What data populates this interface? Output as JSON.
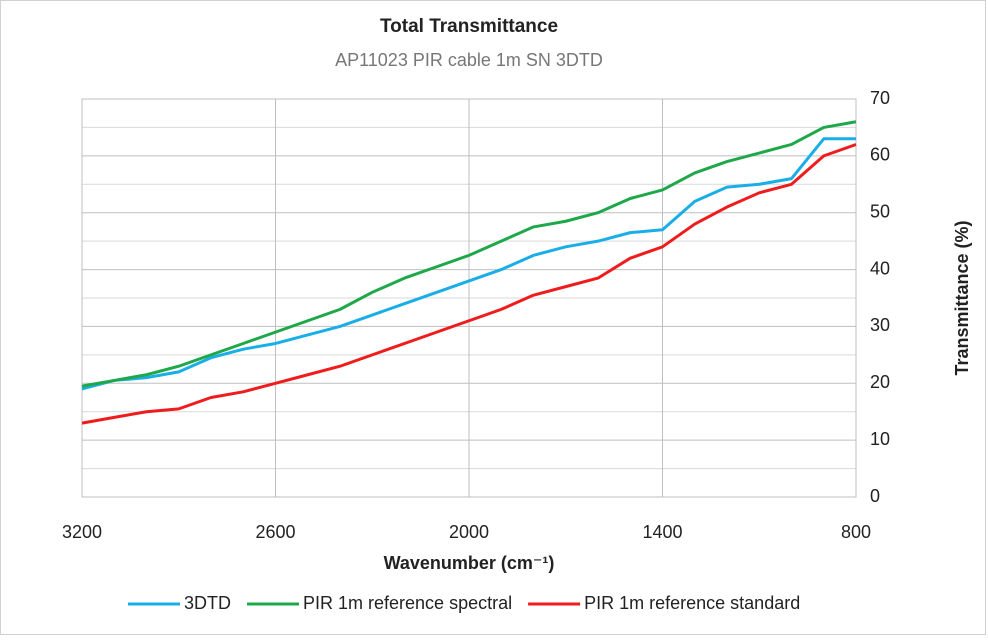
{
  "chart_data": {
    "type": "line",
    "title": "Total Transmittance",
    "subtitle": "AP11023 PIR cable 1m  SN 3DTD",
    "x_label": "Wavenumber  (cm⁻¹)",
    "y_label": "Transmittance (%)",
    "x": [
      3200,
      3100,
      3000,
      2900,
      2800,
      2700,
      2600,
      2500,
      2400,
      2300,
      2200,
      2100,
      2000,
      1900,
      1800,
      1700,
      1600,
      1500,
      1400,
      1300,
      1200,
      1100,
      1000,
      900,
      800
    ],
    "xlim": [
      3200,
      800
    ],
    "xticks": [
      3200,
      2600,
      2000,
      1400,
      800
    ],
    "ylim": [
      0,
      70
    ],
    "yticks": [
      0,
      10,
      20,
      30,
      40,
      50,
      60,
      70
    ],
    "y_minor_ticks": [
      5,
      15,
      25,
      35,
      45,
      55,
      65
    ],
    "y_axis_side": "right",
    "grid": true,
    "legend": "bottom",
    "series": [
      {
        "name": "3DTD",
        "color": "#1aaee6",
        "values": [
          19,
          20.5,
          21,
          22,
          24.5,
          26,
          27,
          28.5,
          30,
          32,
          34,
          36,
          38,
          40,
          42.5,
          44,
          45,
          46.5,
          47,
          52,
          54.5,
          55,
          56,
          63,
          63
        ]
      },
      {
        "name": "PIR 1m reference spectral",
        "color": "#1ea84a",
        "values": [
          19.5,
          20.5,
          21.5,
          23,
          25,
          27,
          29,
          31,
          33,
          36,
          38.5,
          40.5,
          42.5,
          45,
          47.5,
          48.5,
          50,
          52.5,
          54,
          57,
          59,
          60.5,
          62,
          65,
          66
        ]
      },
      {
        "name": "PIR 1m reference standard",
        "color": "#ee1c1c",
        "values": [
          13,
          14,
          15,
          15.5,
          17.5,
          18.5,
          20,
          21.5,
          23,
          25,
          27,
          29,
          31,
          33,
          35.5,
          37,
          38.5,
          42,
          44,
          48,
          51,
          53.5,
          55,
          60,
          62
        ]
      }
    ]
  }
}
